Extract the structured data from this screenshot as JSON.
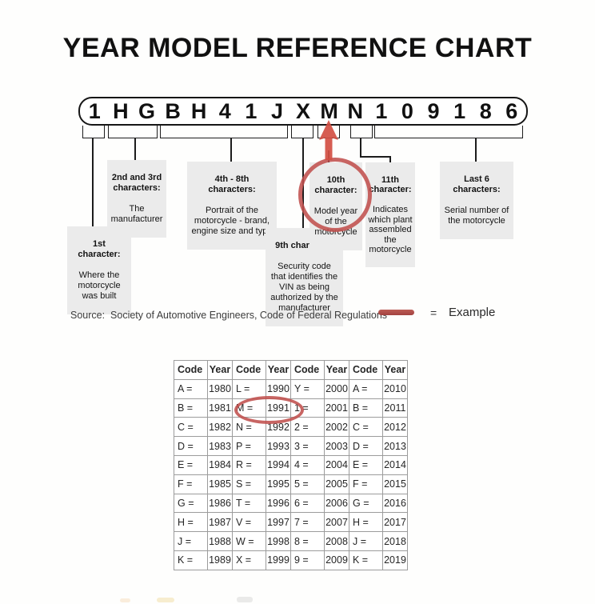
{
  "page": {
    "title": "YEAR MODEL REFERENCE CHART"
  },
  "colors": {
    "accent_red": "#c0504d",
    "callout_background": "#ebebeb",
    "table_border": "#9c9c9c"
  },
  "vin": {
    "characters": [
      "1",
      "H",
      "G",
      "B",
      "H",
      "4",
      "1",
      "J",
      "X",
      "M",
      "N",
      "1",
      "0",
      "9",
      "1",
      "8",
      "6"
    ]
  },
  "callouts": {
    "first": {
      "heading": "1st\ncharacter:",
      "body": "Where the\nmotorcycle\nwas built"
    },
    "second_third": {
      "heading": "2nd and 3rd\ncharacters:",
      "body": "The\nmanufacturer"
    },
    "fourth_eighth": {
      "heading": "4th - 8th\ncharacters:",
      "body": "Portrait of the\nmotorcycle - brand,\nengine size and type"
    },
    "ninth": {
      "heading": "9th character:",
      "body": "Security code\nthat identifies the\nVIN as being\nauthorized by the\nmanufacturer"
    },
    "tenth": {
      "heading": "10th\ncharacter:",
      "body": "Model year\nof the\nmotorcycle"
    },
    "eleventh": {
      "heading": "11th\ncharacter:",
      "body": "Indicates\nwhich plant\nassembled\nthe\nmotorcycle"
    },
    "last_six": {
      "heading": "Last 6\ncharacters:",
      "body": "Serial number of\nthe motorcycle"
    }
  },
  "source_line": "Source:  Society of Automotive Engineers, Code of Federal Regulations",
  "legend": {
    "equals_sign": "=",
    "label": "Example",
    "swoosh_icon": "red-line",
    "arrow_icon": "red-up-arrow",
    "circle_icon": "red-ellipse"
  },
  "table": {
    "header": [
      "Code",
      "Year",
      "Code",
      "Year",
      "Code",
      "Year",
      "Code",
      "Year"
    ],
    "rows": [
      [
        "A =",
        "1980",
        "L =",
        "1990",
        "Y =",
        "2000",
        "A =",
        "2010"
      ],
      [
        "B =",
        "1981",
        "M =",
        "1991",
        "1 =",
        "2001",
        "B =",
        "2011"
      ],
      [
        "C =",
        "1982",
        "N =",
        "1992",
        "2 =",
        "2002",
        "C =",
        "2012"
      ],
      [
        "D =",
        "1983",
        "P =",
        "1993",
        "3 =",
        "2003",
        "D =",
        "2013"
      ],
      [
        "E =",
        "1984",
        "R =",
        "1994",
        "4 =",
        "2004",
        "E =",
        "2014"
      ],
      [
        "F =",
        "1985",
        "S =",
        "1995",
        "5 =",
        "2005",
        "F =",
        "2015"
      ],
      [
        "G =",
        "1986",
        "T =",
        "1996",
        "6 =",
        "2006",
        "G =",
        "2016"
      ],
      [
        "H =",
        "1987",
        "V =",
        "1997",
        "7 =",
        "2007",
        "H =",
        "2017"
      ],
      [
        "J =",
        "1988",
        "W =",
        "1998",
        "8 =",
        "2008",
        "J =",
        "2018"
      ],
      [
        "K =",
        "1989",
        "X =",
        "1999",
        "9 =",
        "2009",
        "K =",
        "2019"
      ]
    ],
    "circled_cells": "M = 1991"
  }
}
